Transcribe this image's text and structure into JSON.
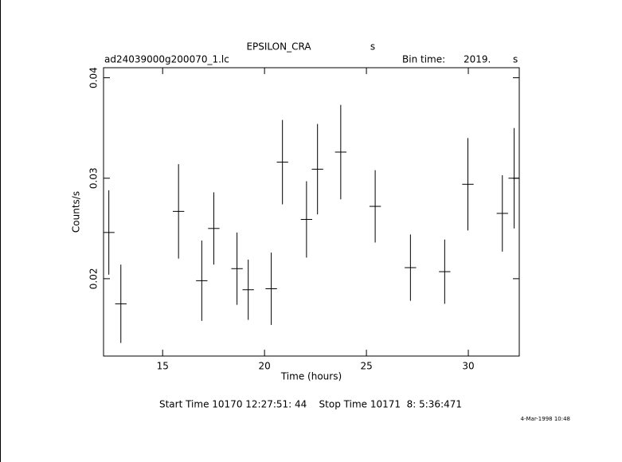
{
  "chart_data": {
    "type": "errorbar",
    "title": "EPSILON_CRA",
    "title_unit": "s",
    "subtitle": "ad24039000g200070_1.lc",
    "bin_label": "Bin time:",
    "bin_value": "2019.",
    "bin_unit": "s",
    "xlabel": "Time (hours)",
    "ylabel": "Counts/s",
    "footer": "Start Time 10170 12:27:51: 44    Stop Time 10171  8: 5:36:471",
    "stamp": "4-Mar-1998 10:48",
    "color": "#000000",
    "x": [
      12.36,
      12.95,
      15.78,
      16.92,
      17.51,
      18.65,
      19.2,
      20.33,
      20.88,
      22.06,
      22.6,
      23.74,
      25.43,
      27.16,
      28.84,
      29.98,
      31.67,
      32.25
    ],
    "xerr": [
      0.28,
      0.28,
      0.28,
      0.28,
      0.28,
      0.28,
      0.28,
      0.28,
      0.28,
      0.28,
      0.28,
      0.28,
      0.28,
      0.28,
      0.28,
      0.28,
      0.28,
      0.28
    ],
    "values": [
      0.0246,
      0.0175,
      0.0267,
      0.0198,
      0.025,
      0.021,
      0.0189,
      0.019,
      0.0316,
      0.0259,
      0.0309,
      0.0326,
      0.0272,
      0.0211,
      0.0207,
      0.0294,
      0.0265,
      0.03
    ],
    "errors": [
      0.0042,
      0.0039,
      0.0047,
      0.004,
      0.0036,
      0.0036,
      0.003,
      0.0036,
      0.0042,
      0.0038,
      0.0045,
      0.0047,
      0.0036,
      0.0033,
      0.0032,
      0.0046,
      0.0038,
      0.005
    ],
    "xlim": [
      12.1,
      32.5
    ],
    "ylim": [
      0.0123,
      0.041
    ],
    "xticks": [
      15,
      20,
      25,
      30
    ],
    "yticks": [
      0.02,
      0.03,
      0.04
    ]
  }
}
